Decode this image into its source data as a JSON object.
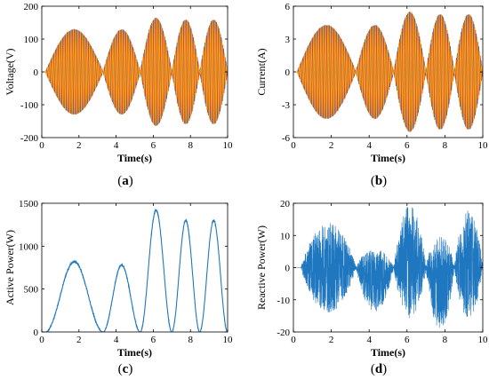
{
  "panel_labels": [
    "a",
    "b",
    "c",
    "d"
  ],
  "colors": {
    "blue": "#1f77c0",
    "red": "#e0442a",
    "orange": "#f4a41c",
    "axis": "#000000"
  },
  "chart_data": [
    {
      "id": "a",
      "type": "line",
      "xlabel": "Time(s)",
      "ylabel": "Voltage(V)",
      "xlim": [
        0,
        10
      ],
      "ylim": [
        -200,
        200
      ],
      "xticks": [
        0,
        2,
        4,
        6,
        8,
        10
      ],
      "yticks": [
        -200,
        -100,
        0,
        100,
        200
      ],
      "grid": false,
      "note": "three-phase oscillating waveform with lobe envelopes",
      "envelope": {
        "lobes": [
          {
            "start": 0.2,
            "end": 3.3,
            "peak": 130
          },
          {
            "start": 3.3,
            "end": 5.3,
            "peak": 130
          },
          {
            "start": 5.3,
            "end": 7.0,
            "peak": 165
          },
          {
            "start": 7.0,
            "end": 8.5,
            "peak": 160
          },
          {
            "start": 8.5,
            "end": 10.0,
            "peak": 160
          }
        ],
        "frequency_hz": 8
      },
      "series_colors": [
        "#1f77c0",
        "#e0442a",
        "#f4a41c"
      ]
    },
    {
      "id": "b",
      "type": "line",
      "xlabel": "Time(s)",
      "ylabel": "Current(A)",
      "xlim": [
        0,
        10
      ],
      "ylim": [
        -6,
        6
      ],
      "xticks": [
        0,
        2,
        4,
        6,
        8,
        10
      ],
      "yticks": [
        -6,
        -3,
        0,
        3,
        6
      ],
      "grid": false,
      "envelope": {
        "lobes": [
          {
            "start": 0.2,
            "end": 3.3,
            "peak": 4.3
          },
          {
            "start": 3.3,
            "end": 5.3,
            "peak": 4.3
          },
          {
            "start": 5.3,
            "end": 7.0,
            "peak": 5.5
          },
          {
            "start": 7.0,
            "end": 8.5,
            "peak": 5.3
          },
          {
            "start": 8.5,
            "end": 10.0,
            "peak": 5.3
          }
        ],
        "frequency_hz": 8
      },
      "series_colors": [
        "#1f77c0",
        "#e0442a",
        "#f4a41c"
      ]
    },
    {
      "id": "c",
      "type": "line",
      "xlabel": "Time(s)",
      "ylabel": "Active Power(W)",
      "xlim": [
        0,
        10
      ],
      "ylim": [
        0,
        1500
      ],
      "xticks": [
        0,
        2,
        4,
        6,
        8,
        10
      ],
      "yticks": [
        0,
        500,
        1000,
        1500
      ],
      "grid": false,
      "humps": [
        {
          "start": 0.2,
          "end": 3.3,
          "peak": 820
        },
        {
          "start": 3.3,
          "end": 5.3,
          "peak": 780
        },
        {
          "start": 5.3,
          "end": 7.0,
          "peak": 1420
        },
        {
          "start": 7.0,
          "end": 8.5,
          "peak": 1300
        },
        {
          "start": 8.5,
          "end": 10.0,
          "peak": 1300
        }
      ],
      "series_colors": [
        "#1f77c0"
      ]
    },
    {
      "id": "d",
      "type": "line",
      "xlabel": "Time(s)",
      "ylabel": "Reactive Power(W)",
      "xlim": [
        0,
        10
      ],
      "ylim": [
        -20,
        20
      ],
      "xticks": [
        0,
        2,
        4,
        6,
        8,
        10
      ],
      "yticks": [
        -20,
        -10,
        0,
        10,
        20
      ],
      "grid": false,
      "bursts": [
        {
          "start": 0.4,
          "end": 3.3,
          "peak": 14,
          "bias": 0
        },
        {
          "start": 3.3,
          "end": 5.3,
          "peak": 10,
          "bias": -4
        },
        {
          "start": 5.3,
          "end": 7.0,
          "peak": 18,
          "bias": 2
        },
        {
          "start": 7.0,
          "end": 8.5,
          "peak": 15,
          "bias": -5
        },
        {
          "start": 8.5,
          "end": 10.0,
          "peak": 17,
          "bias": 1
        }
      ],
      "series_colors": [
        "#1f77c0"
      ]
    }
  ]
}
